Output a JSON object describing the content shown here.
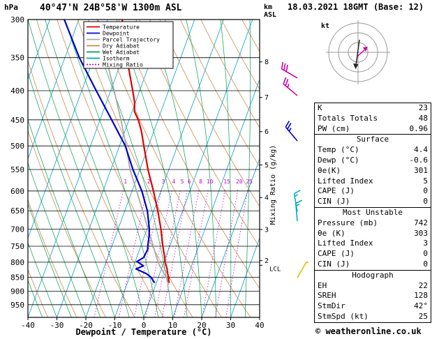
{
  "header": {
    "pressure_unit": "hPa",
    "station": "40°47'N 24B°58'W 1300m ASL",
    "datetime": "18.03.2021 18GMT (Base: 12)",
    "altitude_unit_line1": "km",
    "altitude_unit_line2": "ASL"
  },
  "legend": {
    "items": [
      {
        "label": "Temperature",
        "color": "#dd0000"
      },
      {
        "label": "Dewpoint",
        "color": "#0000cc"
      },
      {
        "label": "Parcel Trajectory",
        "color": "#a8a8a8"
      },
      {
        "label": "Dry Adiabat",
        "color": "#cc8a4a"
      },
      {
        "label": "Wet Adiabat",
        "color": "#00a050"
      },
      {
        "label": "Isotherm",
        "color": "#00a0c8"
      },
      {
        "label": "Mixing Ratio",
        "color": "#cc00cc"
      }
    ]
  },
  "axes": {
    "pressure_ticks": [
      300,
      350,
      400,
      450,
      500,
      550,
      600,
      650,
      700,
      750,
      800,
      850,
      900,
      950
    ],
    "temp_ticks": [
      -40,
      -30,
      -20,
      -10,
      0,
      10,
      20,
      30,
      40
    ],
    "x_label": "Dewpoint / Temperature (°C)",
    "km_ticks": [
      8,
      7,
      6,
      5,
      4,
      3,
      2
    ],
    "lcl_label": "LCL",
    "mixing_ratio_axis_label": "Mixing Ratio (g/kg)",
    "mixing_ratio_values": [
      1,
      2,
      3,
      4,
      5,
      6,
      8,
      10,
      15,
      20,
      25
    ]
  },
  "chart_data": {
    "type": "line",
    "title": "Skew-T log-P sounding",
    "xlabel": "Dewpoint / Temperature (°C)",
    "ylabel": "hPa",
    "x_range": [
      -40,
      40
    ],
    "pressure_range": [
      300,
      1000
    ],
    "pressure_scale": "log",
    "series": [
      {
        "name": "Temperature",
        "color": "#dd0000",
        "points": [
          [
            870,
            4.4
          ],
          [
            850,
            3.4
          ],
          [
            820,
            1.8
          ],
          [
            800,
            0.4
          ],
          [
            780,
            -0.6
          ],
          [
            750,
            -2.4
          ],
          [
            700,
            -5.2
          ],
          [
            650,
            -8.6
          ],
          [
            600,
            -12.6
          ],
          [
            550,
            -17.2
          ],
          [
            500,
            -21.6
          ],
          [
            470,
            -24.4
          ],
          [
            450,
            -26.8
          ],
          [
            435,
            -29.2
          ],
          [
            420,
            -30.2
          ],
          [
            400,
            -32.4
          ],
          [
            380,
            -34.8
          ],
          [
            350,
            -38.6
          ],
          [
            330,
            -41.2
          ],
          [
            300,
            -45.0
          ]
        ]
      },
      {
        "name": "Dewpoint",
        "color": "#0000cc",
        "points": [
          [
            870,
            -0.6
          ],
          [
            850,
            -2.6
          ],
          [
            838,
            -4.6
          ],
          [
            822,
            -8.8
          ],
          [
            812,
            -6.6
          ],
          [
            798,
            -9.4
          ],
          [
            785,
            -7.6
          ],
          [
            760,
            -7.2
          ],
          [
            750,
            -7.6
          ],
          [
            720,
            -8.4
          ],
          [
            700,
            -9.2
          ],
          [
            650,
            -12.2
          ],
          [
            600,
            -16.6
          ],
          [
            550,
            -22.4
          ],
          [
            500,
            -28.0
          ],
          [
            450,
            -36.0
          ],
          [
            400,
            -45.0
          ],
          [
            350,
            -55.0
          ],
          [
            300,
            -65.0
          ]
        ]
      },
      {
        "name": "Parcel Trajectory",
        "color": "#a8a8a8",
        "points": [
          [
            870,
            4.4
          ],
          [
            840,
            1.7
          ],
          [
            812,
            -1.0
          ],
          [
            780,
            -3.5
          ],
          [
            750,
            -5.7
          ],
          [
            700,
            -9.6
          ],
          [
            650,
            -13.8
          ],
          [
            600,
            -18.4
          ],
          [
            550,
            -23.4
          ],
          [
            500,
            -27.7
          ],
          [
            450,
            -32.8
          ],
          [
            400,
            -38.8
          ],
          [
            350,
            -45.8
          ],
          [
            300,
            -53.6
          ]
        ]
      }
    ],
    "wind_barbs": [
      {
        "pressure": 380,
        "speed_kt": 30,
        "dir_deg": 300,
        "color": "#cc00aa"
      },
      {
        "pressure": 408,
        "speed_kt": 25,
        "dir_deg": 310,
        "color": "#cc00aa"
      },
      {
        "pressure": 490,
        "speed_kt": 25,
        "dir_deg": 320,
        "color": "#0000cc"
      },
      {
        "pressure": 652,
        "speed_kt": 15,
        "dir_deg": 350,
        "color": "#00b0c0"
      },
      {
        "pressure": 678,
        "speed_kt": 15,
        "dir_deg": 355,
        "color": "#00b0c0"
      },
      {
        "pressure": 852,
        "speed_kt": 10,
        "dir_deg": 30,
        "color": "#d4c400"
      }
    ],
    "lcl_pressure": 810
  },
  "hodograph": {
    "unit_label": "kt"
  },
  "table": {
    "sections": [
      {
        "title": null,
        "rows": [
          [
            "K",
            "23"
          ],
          [
            "Totals Totals",
            "48"
          ],
          [
            "PW (cm)",
            "0.96"
          ]
        ]
      },
      {
        "title": "Surface",
        "rows": [
          [
            "Temp (°C)",
            "4.4"
          ],
          [
            "Dewp (°C)",
            "-0.6"
          ],
          [
            "θe(K)",
            "301"
          ],
          [
            "Lifted Index",
            "5"
          ],
          [
            "CAPE (J)",
            "0"
          ],
          [
            "CIN (J)",
            "0"
          ]
        ]
      },
      {
        "title": "Most Unstable",
        "rows": [
          [
            "Pressure (mb)",
            "742"
          ],
          [
            "θe (K)",
            "303"
          ],
          [
            "Lifted Index",
            "3"
          ],
          [
            "CAPE (J)",
            "0"
          ],
          [
            "CIN (J)",
            "0"
          ]
        ]
      },
      {
        "title": "Hodograph",
        "rows": [
          [
            "EH",
            "22"
          ],
          [
            "SREH",
            "128"
          ],
          [
            "StmDir",
            "42°"
          ],
          [
            "StmSpd (kt)",
            "25"
          ]
        ]
      }
    ]
  },
  "footer": {
    "credit": "© weatheronline.co.uk"
  }
}
